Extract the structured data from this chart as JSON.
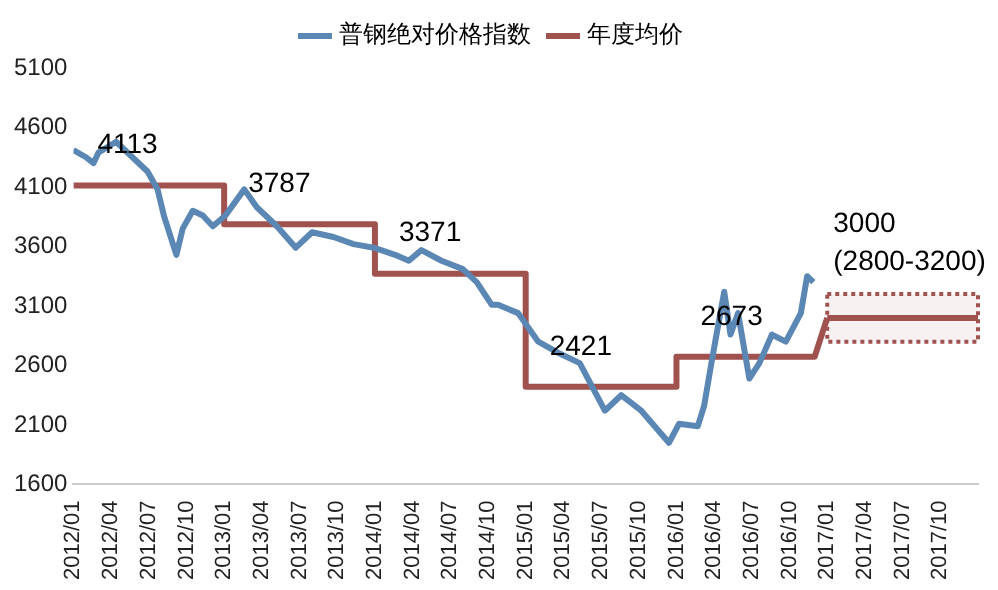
{
  "chart_data": {
    "type": "line",
    "legend": "top",
    "grid": false,
    "marker": "none",
    "line_style": "solid",
    "xlim": [
      "2012-01",
      "2018-01"
    ],
    "xticks": [
      {
        "value": "2012-01",
        "label": "2012/01"
      },
      {
        "value": "2012-04",
        "label": "2012/04"
      },
      {
        "value": "2012-07",
        "label": "2012/07"
      },
      {
        "value": "2012-10",
        "label": "2012/10"
      },
      {
        "value": "2013-01",
        "label": "2013/01"
      },
      {
        "value": "2013-04",
        "label": "2013/04"
      },
      {
        "value": "2013-07",
        "label": "2013/07"
      },
      {
        "value": "2013-10",
        "label": "2013/10"
      },
      {
        "value": "2014-01",
        "label": "2014/01"
      },
      {
        "value": "2014-04",
        "label": "2014/04"
      },
      {
        "value": "2014-07",
        "label": "2014/07"
      },
      {
        "value": "2014-10",
        "label": "2014/10"
      },
      {
        "value": "2015-01",
        "label": "2015/01"
      },
      {
        "value": "2015-04",
        "label": "2015/04"
      },
      {
        "value": "2015-07",
        "label": "2015/07"
      },
      {
        "value": "2015-10",
        "label": "2015/10"
      },
      {
        "value": "2016-01",
        "label": "2016/01"
      },
      {
        "value": "2016-04",
        "label": "2016/04"
      },
      {
        "value": "2016-07",
        "label": "2016/07"
      },
      {
        "value": "2016-10",
        "label": "2016/10"
      },
      {
        "value": "2017-01",
        "label": "2017/01"
      },
      {
        "value": "2017-04",
        "label": "2017/04"
      },
      {
        "value": "2017-07",
        "label": "2017/07"
      },
      {
        "value": "2017-10",
        "label": "2017/10"
      }
    ],
    "ylim": [
      1600,
      5100
    ],
    "yticks": [
      1600,
      2100,
      2600,
      3100,
      3600,
      4100,
      4600,
      5100
    ],
    "series": [
      {
        "name": "普钢绝对价格指数",
        "color": "#5b87b4",
        "x": [
          "2012-01-01",
          "2012-02-01",
          "2012-02-19",
          "2012-03-01",
          "2012-04-13",
          "2012-05-10",
          "2012-06-28",
          "2012-07-22",
          "2012-08-07",
          "2012-09-07",
          "2012-09-22",
          "2012-10-16",
          "2012-11-10",
          "2012-12-04",
          "2013-01-04",
          "2013-02-19",
          "2013-03-19",
          "2013-05-07",
          "2013-06-22",
          "2013-08-01",
          "2013-09-22",
          "2013-11-10",
          "2013-12-28",
          "2014-02-19",
          "2014-03-22",
          "2014-04-22",
          "2014-06-10",
          "2014-08-01",
          "2014-09-04",
          "2014-10-10",
          "2014-10-25",
          "2014-12-13",
          "2015-02-01",
          "2015-03-22",
          "2015-05-10",
          "2015-07-10",
          "2015-08-19",
          "2015-10-07",
          "2015-12-13",
          "2016-01-07",
          "2016-02-22",
          "2016-03-07",
          "2016-03-22",
          "2016-04-01",
          "2016-04-25",
          "2016-05-10",
          "2016-05-28",
          "2016-06-25",
          "2016-07-19",
          "2016-08-19",
          "2016-09-22",
          "2016-10-28",
          "2016-11-13",
          "2016-11-28"
        ],
        "values": [
          4410,
          4350,
          4300,
          4390,
          4480,
          4390,
          4230,
          4080,
          3860,
          3530,
          3750,
          3900,
          3860,
          3770,
          3860,
          4080,
          3930,
          3770,
          3590,
          3720,
          3680,
          3620,
          3590,
          3530,
          3480,
          3570,
          3480,
          3410,
          3300,
          3110,
          3110,
          3040,
          2800,
          2700,
          2620,
          2220,
          2350,
          2220,
          1950,
          2110,
          2090,
          2260,
          2570,
          2750,
          3220,
          2860,
          3040,
          2490,
          2620,
          2860,
          2800,
          3040,
          3350,
          3300
        ]
      },
      {
        "name": "年度均价",
        "color": "#a0524f",
        "x": [
          "2012-01",
          "2013-01",
          "2013-01",
          "2014-01",
          "2014-01",
          "2015-01",
          "2015-01",
          "2016-01",
          "2016-01",
          "2016-12",
          "2017-01"
        ],
        "values": [
          4113,
          4113,
          3787,
          3787,
          3371,
          3371,
          2421,
          2421,
          2673,
          2673,
          3000
        ],
        "value_labels": [
          "4113",
          null,
          "3787",
          null,
          "3371",
          null,
          "2421",
          null,
          "2673",
          null,
          null
        ]
      },
      {
        "color": "#a0524f",
        "x": [
          "2017-01",
          "2018-01"
        ],
        "values": [
          3000,
          3000
        ],
        "lower": [
          2800,
          2800
        ],
        "upper": [
          3200,
          3200
        ],
        "value_labels": [
          "3000\n(2800-3200)",
          null
        ]
      }
    ]
  }
}
